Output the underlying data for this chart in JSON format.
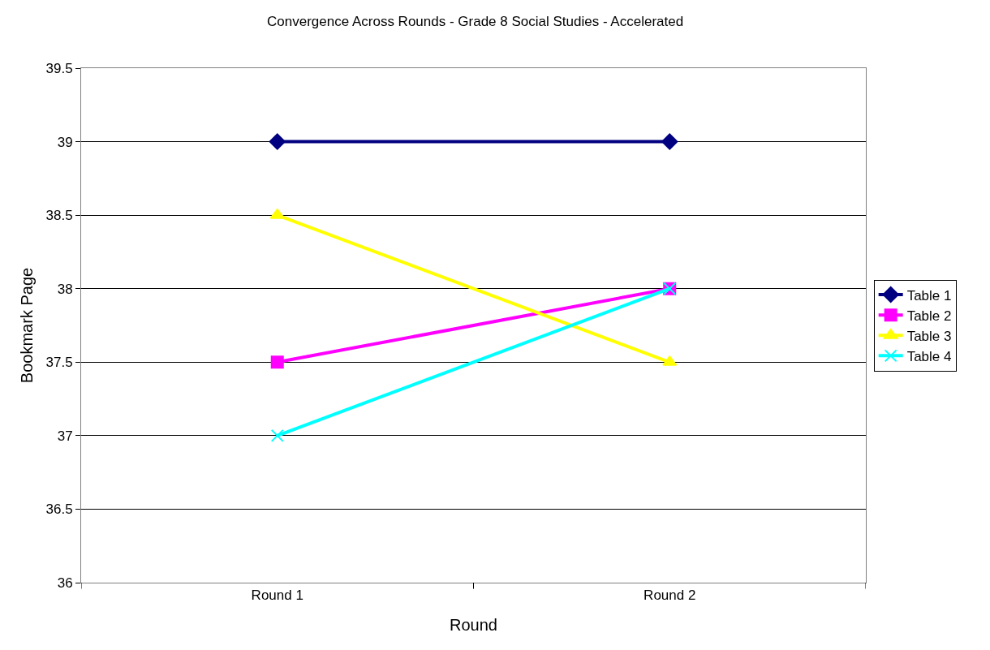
{
  "chart_data": {
    "type": "line",
    "title": "Convergence Across Rounds - Grade 8 Social Studies - Accelerated",
    "xlabel": "Round",
    "ylabel": "Bookmark Page",
    "categories": [
      "Round 1",
      "Round 2"
    ],
    "series": [
      {
        "name": "Table 1",
        "color": "#000080",
        "marker": "diamond",
        "values": [
          39,
          39
        ]
      },
      {
        "name": "Table 2",
        "color": "#ff00ff",
        "marker": "square",
        "values": [
          37.5,
          38
        ]
      },
      {
        "name": "Table 3",
        "color": "#ffff00",
        "marker": "triangle",
        "values": [
          38.5,
          37.5
        ]
      },
      {
        "name": "Table 4",
        "color": "#00ffff",
        "marker": "cross",
        "values": [
          37,
          38
        ]
      }
    ],
    "ylim": [
      36,
      39.5
    ],
    "yticks": [
      36,
      36.5,
      37,
      37.5,
      38,
      38.5,
      39,
      39.5
    ],
    "grid": "y",
    "legend": "right",
    "line_style": "solid"
  }
}
